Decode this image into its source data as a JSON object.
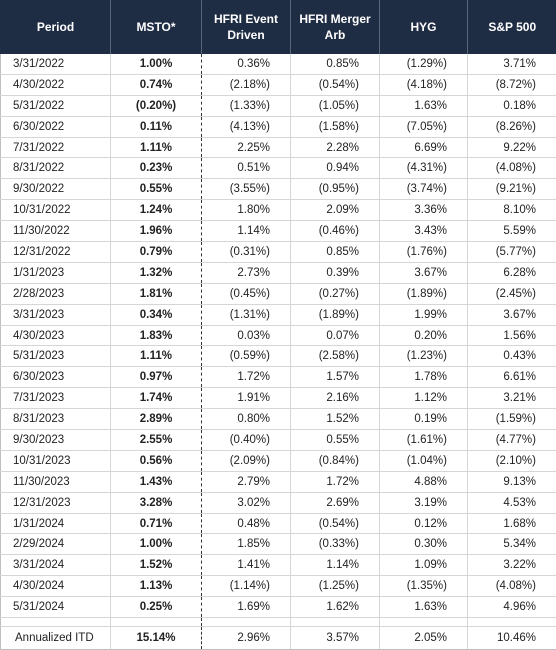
{
  "headers": [
    "Period",
    "MSTO*",
    "HFRI Event Driven",
    "HFRI Merger Arb",
    "HYG",
    "S&P 500"
  ],
  "header_lines": [
    [
      "Period"
    ],
    [
      "MSTO*"
    ],
    [
      "HFRI Event",
      "Driven"
    ],
    [
      "HFRI Merger",
      "Arb"
    ],
    [
      "HYG"
    ],
    [
      "S&P 500"
    ]
  ],
  "rows": [
    [
      "3/31/2022",
      "1.00%",
      "0.36%",
      "0.85%",
      "(1.29%)",
      "3.71%"
    ],
    [
      "4/30/2022",
      "0.74%",
      "(2.18%)",
      "(0.54%)",
      "(4.18%)",
      "(8.72%)"
    ],
    [
      "5/31/2022",
      "(0.20%)",
      "(1.33%)",
      "(1.05%)",
      "1.63%",
      "0.18%"
    ],
    [
      "6/30/2022",
      "0.11%",
      "(4.13%)",
      "(1.58%)",
      "(7.05%)",
      "(8.26%)"
    ],
    [
      "7/31/2022",
      "1.11%",
      "2.25%",
      "2.28%",
      "6.69%",
      "9.22%"
    ],
    [
      "8/31/2022",
      "0.23%",
      "0.51%",
      "0.94%",
      "(4.31%)",
      "(4.08%)"
    ],
    [
      "9/30/2022",
      "0.55%",
      "(3.55%)",
      "(0.95%)",
      "(3.74%)",
      "(9.21%)"
    ],
    [
      "10/31/2022",
      "1.24%",
      "1.80%",
      "2.09%",
      "3.36%",
      "8.10%"
    ],
    [
      "11/30/2022",
      "1.96%",
      "1.14%",
      "(0.46%)",
      "3.43%",
      "5.59%"
    ],
    [
      "12/31/2022",
      "0.79%",
      "(0.31%)",
      "0.85%",
      "(1.76%)",
      "(5.77%)"
    ],
    [
      "1/31/2023",
      "1.32%",
      "2.73%",
      "0.39%",
      "3.67%",
      "6.28%"
    ],
    [
      "2/28/2023",
      "1.81%",
      "(0.45%)",
      "(0.27%)",
      "(1.89%)",
      "(2.45%)"
    ],
    [
      "3/31/2023",
      "0.34%",
      "(1.31%)",
      "(1.89%)",
      "1.99%",
      "3.67%"
    ],
    [
      "4/30/2023",
      "1.83%",
      "0.03%",
      "0.07%",
      "0.20%",
      "1.56%"
    ],
    [
      "5/31/2023",
      "1.11%",
      "(0.59%)",
      "(2.58%)",
      "(1.23%)",
      "0.43%"
    ],
    [
      "6/30/2023",
      "0.97%",
      "1.72%",
      "1.57%",
      "1.78%",
      "6.61%"
    ],
    [
      "7/31/2023",
      "1.74%",
      "1.91%",
      "2.16%",
      "1.12%",
      "3.21%"
    ],
    [
      "8/31/2023",
      "2.89%",
      "0.80%",
      "1.52%",
      "0.19%",
      "(1.59%)"
    ],
    [
      "9/30/2023",
      "2.55%",
      "(0.40%)",
      "0.55%",
      "(1.61%)",
      "(4.77%)"
    ],
    [
      "10/31/2023",
      "0.56%",
      "(2.09%)",
      "(0.84%)",
      "(1.04%)",
      "(2.10%)"
    ],
    [
      "11/30/2023",
      "1.43%",
      "2.79%",
      "1.72%",
      "4.88%",
      "9.13%"
    ],
    [
      "12/31/2023",
      "3.28%",
      "3.02%",
      "2.69%",
      "3.19%",
      "4.53%"
    ],
    [
      "1/31/2024",
      "0.71%",
      "0.48%",
      "(0.54%)",
      "0.12%",
      "1.68%"
    ],
    [
      "2/29/2024",
      "1.00%",
      "1.85%",
      "(0.33%)",
      "0.30%",
      "5.34%"
    ],
    [
      "3/31/2024",
      "1.52%",
      "1.41%",
      "1.14%",
      "1.09%",
      "3.22%"
    ],
    [
      "4/30/2024",
      "1.13%",
      "(1.14%)",
      "(1.25%)",
      "(1.35%)",
      "(4.08%)"
    ],
    [
      "5/31/2024",
      "0.25%",
      "1.69%",
      "1.62%",
      "1.63%",
      "4.96%"
    ]
  ],
  "summary": [
    "Annualized ITD",
    "15.14%",
    "2.96%",
    "3.57%",
    "2.05%",
    "10.46%"
  ]
}
